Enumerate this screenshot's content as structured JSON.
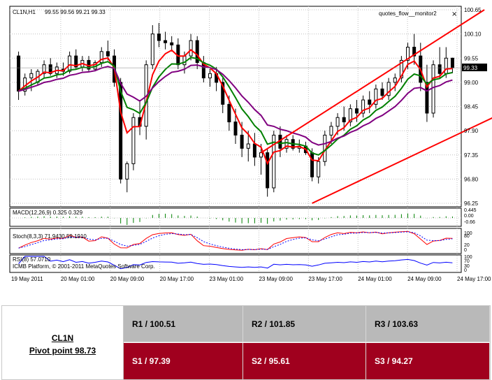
{
  "chart_data": {
    "type": "candlestick",
    "symbol": "CL1N,H1",
    "ohlc_header": "99.55 99.56 99.21 99.33",
    "indicator_label": "quotes_flow__monitor2",
    "close_icon": "close-icon",
    "last_price_label": "99.33",
    "y_ticks": [
      "100.65",
      "100.10",
      "99.55",
      "99.00",
      "98.45",
      "97.90",
      "97.35",
      "96.80",
      "96.25"
    ],
    "y_range": [
      96.25,
      100.65
    ],
    "x_ticks": [
      "19 May 2011",
      "20 May 01:00",
      "20 May 09:00",
      "20 May 17:00",
      "23 May 01:00",
      "23 May 09:00",
      "23 May 17:00",
      "24 May 01:00",
      "24 May 09:00",
      "24 May 17:00"
    ],
    "candles": [
      [
        99.6,
        99.7,
        98.6,
        98.8
      ],
      [
        98.8,
        99.2,
        98.7,
        99.1
      ],
      [
        99.1,
        99.3,
        98.8,
        99.2
      ],
      [
        99.0,
        99.3,
        98.95,
        99.25
      ],
      [
        99.2,
        99.5,
        99.1,
        99.4
      ],
      [
        99.4,
        99.55,
        99.15,
        99.2
      ],
      [
        99.2,
        99.45,
        99.1,
        99.35
      ],
      [
        99.3,
        99.45,
        99.15,
        99.25
      ],
      [
        99.25,
        99.7,
        99.2,
        99.6
      ],
      [
        99.6,
        99.75,
        99.3,
        99.35
      ],
      [
        99.35,
        99.6,
        99.25,
        99.5
      ],
      [
        99.5,
        99.6,
        99.25,
        99.3
      ],
      [
        99.3,
        99.5,
        99.25,
        99.45
      ],
      [
        99.45,
        99.8,
        99.35,
        99.7
      ],
      [
        99.7,
        99.95,
        99.5,
        99.6
      ],
      [
        99.6,
        99.75,
        98.9,
        99.0
      ],
      [
        99.0,
        99.1,
        96.7,
        96.8
      ],
      [
        96.8,
        97.2,
        96.5,
        97.15
      ],
      [
        97.15,
        98.3,
        97.0,
        98.2
      ],
      [
        98.2,
        98.6,
        97.8,
        98.0
      ],
      [
        98.0,
        99.5,
        97.7,
        99.4
      ],
      [
        99.4,
        100.3,
        99.3,
        100.1
      ],
      [
        100.1,
        100.35,
        99.8,
        99.95
      ],
      [
        99.95,
        100.15,
        99.75,
        99.9
      ],
      [
        99.9,
        100.05,
        99.7,
        99.85
      ],
      [
        99.85,
        100.0,
        99.3,
        99.4
      ],
      [
        99.4,
        99.7,
        99.2,
        99.6
      ],
      [
        99.6,
        100.1,
        99.5,
        99.95
      ],
      [
        99.95,
        100.05,
        99.3,
        99.45
      ],
      [
        99.45,
        99.6,
        99.0,
        99.1
      ],
      [
        99.1,
        99.3,
        98.9,
        99.2
      ],
      [
        99.2,
        99.35,
        98.8,
        99.0
      ],
      [
        99.0,
        99.1,
        98.3,
        98.5
      ],
      [
        98.5,
        98.7,
        97.9,
        98.1
      ],
      [
        98.1,
        98.4,
        97.6,
        97.8
      ],
      [
        97.8,
        98.1,
        97.3,
        97.5
      ],
      [
        97.5,
        97.9,
        97.2,
        97.6
      ],
      [
        97.6,
        97.85,
        97.1,
        97.3
      ],
      [
        97.3,
        97.6,
        96.9,
        97.4
      ],
      [
        97.4,
        97.5,
        96.4,
        96.6
      ],
      [
        96.6,
        97.9,
        96.5,
        97.8
      ],
      [
        97.8,
        98.0,
        97.3,
        97.5
      ],
      [
        97.5,
        97.8,
        97.4,
        97.7
      ],
      [
        97.7,
        97.8,
        97.45,
        97.5
      ],
      [
        97.5,
        97.7,
        97.4,
        97.55
      ],
      [
        97.55,
        97.65,
        97.35,
        97.4
      ],
      [
        97.4,
        97.5,
        96.75,
        96.85
      ],
      [
        96.85,
        97.3,
        96.7,
        97.2
      ],
      [
        97.2,
        97.9,
        97.1,
        97.8
      ],
      [
        97.8,
        98.1,
        97.6,
        98.0
      ],
      [
        98.0,
        98.3,
        97.8,
        98.2
      ],
      [
        98.2,
        98.45,
        97.9,
        98.1
      ],
      [
        98.1,
        98.5,
        98.0,
        98.4
      ],
      [
        98.4,
        98.6,
        98.1,
        98.3
      ],
      [
        98.3,
        98.7,
        98.2,
        98.6
      ],
      [
        98.6,
        98.8,
        98.3,
        98.5
      ],
      [
        98.5,
        98.95,
        98.4,
        98.85
      ],
      [
        98.85,
        99.0,
        98.6,
        98.7
      ],
      [
        98.7,
        99.1,
        98.6,
        99.0
      ],
      [
        99.0,
        99.2,
        98.8,
        99.1
      ],
      [
        99.1,
        99.6,
        99.0,
        99.5
      ],
      [
        99.5,
        99.9,
        99.3,
        99.8
      ],
      [
        99.8,
        100.1,
        99.4,
        99.6
      ],
      [
        99.6,
        99.9,
        98.8,
        99.0
      ],
      [
        99.0,
        99.4,
        98.1,
        98.3
      ],
      [
        98.3,
        99.5,
        98.2,
        99.4
      ],
      [
        99.4,
        99.8,
        99.1,
        99.2
      ],
      [
        99.2,
        99.8,
        99.1,
        99.55
      ],
      [
        99.55,
        99.56,
        99.21,
        99.33
      ]
    ],
    "channel": {
      "upper": [
        [
          97.4,
          38
        ],
        [
          100.65,
          73
        ]
      ],
      "lower": [
        [
          96.25,
          46
        ],
        [
          98.45,
          78
        ]
      ]
    },
    "macd_label": "MACD(12,26,9) 0.325 0.329",
    "macd_ticks": [
      "0.445",
      "0.00",
      "-0.66"
    ],
    "stoch_label": "Stoch(8,3,3) 71.9430 59.1910",
    "stoch_ticks": [
      "100",
      "80",
      "20",
      "0"
    ],
    "rsi_label": "RSI(8) 57.0710",
    "rsi_ticks": [
      "100",
      "70",
      "30",
      "0"
    ],
    "copyright": "ICMB Platform, © 2001-2011 MetaQuotes Software Corp.",
    "colors": {
      "fast_ma": "#ff0000",
      "mid_ma": "#008000",
      "slow_ma": "#800080",
      "channel": "#ff0000"
    }
  },
  "pivot": {
    "symbol": "CL1N",
    "pivot_label": "Pivot point 98.73",
    "resistances": [
      "R1 / 100.51",
      "R2 / 101.85",
      "R3 / 103.63"
    ],
    "supports": [
      "S1 / 97.39",
      "S2 /  95.61",
      "S3 /  94.27"
    ]
  }
}
